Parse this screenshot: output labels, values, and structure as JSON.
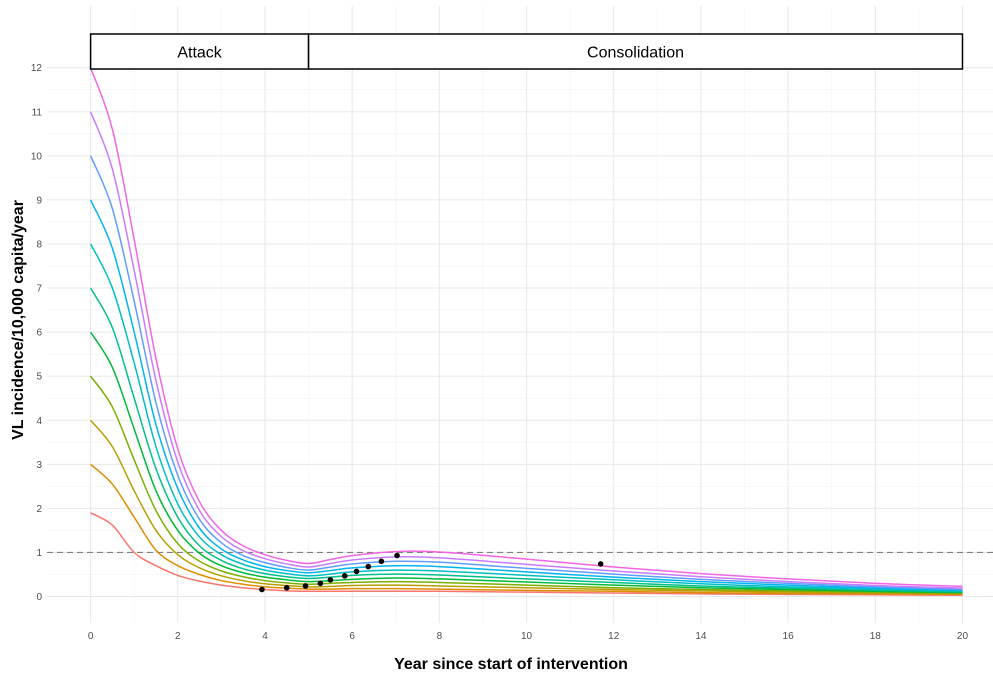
{
  "chart_data": {
    "type": "line",
    "xlabel": "Year since start of intervention",
    "ylabel": "VL incidence/10,000 capita/year",
    "xlim": [
      -1,
      20.7
    ],
    "ylim": [
      -0.6,
      13.4
    ],
    "x_ticks": [
      0,
      2,
      4,
      6,
      8,
      10,
      12,
      14,
      16,
      18,
      20
    ],
    "y_ticks": [
      0,
      1,
      2,
      3,
      4,
      5,
      6,
      7,
      8,
      9,
      10,
      11,
      12
    ],
    "x_tick_labels": [
      "0",
      "2",
      "4",
      "6",
      "8",
      "10",
      "12",
      "14",
      "16",
      "18",
      "20"
    ],
    "y_tick_labels": [
      "0",
      "1",
      "2",
      "3",
      "4",
      "5",
      "6",
      "7",
      "8",
      "9",
      "10",
      "11",
      "12"
    ],
    "grid": true,
    "phases": [
      {
        "label": "Attack",
        "x_start": 0,
        "x_end": 5
      },
      {
        "label": "Consolidation",
        "x_start": 5,
        "x_end": 20
      }
    ],
    "reference_line": {
      "y": 1,
      "style": "dashed"
    },
    "colors": [
      "#F8766D",
      "#DE8C00",
      "#B79F00",
      "#7CAE00",
      "#00BA38",
      "#00C08B",
      "#00BFC4",
      "#00B4F0",
      "#619CFF",
      "#C77CFF",
      "#F564E3"
    ],
    "series": [
      {
        "initial": 1.9,
        "x": [
          0,
          0.5,
          1,
          1.5,
          2,
          2.5,
          3,
          3.5,
          4,
          4.5,
          5,
          5.5,
          6,
          7,
          8,
          10,
          12,
          14,
          16,
          18,
          20
        ],
        "values": [
          1.9,
          1.62,
          1.0,
          0.7,
          0.48,
          0.35,
          0.26,
          0.2,
          0.16,
          0.13,
          0.12,
          0.12,
          0.12,
          0.12,
          0.12,
          0.1,
          0.08,
          0.06,
          0.05,
          0.04,
          0.03
        ]
      },
      {
        "initial": 3.0,
        "x": [
          0,
          0.5,
          1,
          1.5,
          2,
          2.5,
          3,
          3.5,
          4,
          4.5,
          5,
          5.5,
          6,
          7,
          8,
          10,
          12,
          14,
          16,
          18,
          20
        ],
        "values": [
          3.0,
          2.55,
          1.8,
          1.05,
          0.7,
          0.5,
          0.36,
          0.28,
          0.22,
          0.19,
          0.17,
          0.17,
          0.18,
          0.18,
          0.17,
          0.14,
          0.12,
          0.09,
          0.07,
          0.06,
          0.05
        ]
      },
      {
        "initial": 4.0,
        "x": [
          0,
          0.5,
          1,
          1.5,
          2,
          2.5,
          3,
          3.5,
          4,
          4.5,
          5,
          5.5,
          6,
          7,
          8,
          10,
          12,
          14,
          16,
          18,
          20
        ],
        "values": [
          4.0,
          3.4,
          2.4,
          1.5,
          0.95,
          0.65,
          0.47,
          0.36,
          0.29,
          0.25,
          0.22,
          0.23,
          0.25,
          0.26,
          0.24,
          0.2,
          0.16,
          0.13,
          0.1,
          0.08,
          0.06
        ]
      },
      {
        "initial": 5.0,
        "x": [
          0,
          0.5,
          1,
          1.5,
          2,
          2.5,
          3,
          3.5,
          4,
          4.5,
          5,
          5.5,
          6,
          7,
          8,
          10,
          12,
          14,
          16,
          18,
          20
        ],
        "values": [
          5.0,
          4.3,
          3.1,
          1.95,
          1.2,
          0.8,
          0.58,
          0.45,
          0.36,
          0.31,
          0.28,
          0.3,
          0.32,
          0.34,
          0.32,
          0.26,
          0.2,
          0.16,
          0.13,
          0.1,
          0.08
        ]
      },
      {
        "initial": 6.0,
        "x": [
          0,
          0.5,
          1,
          1.5,
          2,
          2.5,
          3,
          3.5,
          4,
          4.5,
          5,
          5.5,
          6,
          7,
          8,
          10,
          12,
          14,
          16,
          18,
          20
        ],
        "values": [
          6.0,
          5.2,
          3.8,
          2.4,
          1.5,
          0.98,
          0.7,
          0.54,
          0.44,
          0.38,
          0.34,
          0.36,
          0.39,
          0.42,
          0.4,
          0.33,
          0.26,
          0.2,
          0.16,
          0.12,
          0.09
        ]
      },
      {
        "initial": 7.0,
        "x": [
          0,
          0.5,
          1,
          1.5,
          2,
          2.5,
          3,
          3.5,
          4,
          4.5,
          5,
          5.5,
          6,
          7,
          8,
          10,
          12,
          14,
          16,
          18,
          20
        ],
        "values": [
          7.0,
          6.1,
          4.5,
          2.9,
          1.8,
          1.15,
          0.82,
          0.63,
          0.52,
          0.45,
          0.41,
          0.44,
          0.48,
          0.51,
          0.49,
          0.4,
          0.32,
          0.24,
          0.19,
          0.14,
          0.11
        ]
      },
      {
        "initial": 8.0,
        "x": [
          0,
          0.5,
          1,
          1.5,
          2,
          2.5,
          3,
          3.5,
          4,
          4.5,
          5,
          5.5,
          6,
          7,
          8,
          10,
          12,
          14,
          16,
          18,
          20
        ],
        "values": [
          8.0,
          7.0,
          5.3,
          3.4,
          2.1,
          1.35,
          0.95,
          0.73,
          0.6,
          0.52,
          0.47,
          0.51,
          0.56,
          0.6,
          0.58,
          0.48,
          0.38,
          0.29,
          0.22,
          0.17,
          0.13
        ]
      },
      {
        "initial": 9.0,
        "x": [
          0,
          0.5,
          1,
          1.5,
          2,
          2.5,
          3,
          3.5,
          4,
          4.5,
          5,
          5.5,
          6,
          7,
          8,
          10,
          12,
          14,
          16,
          18,
          20
        ],
        "values": [
          9.0,
          7.9,
          6.0,
          3.9,
          2.45,
          1.55,
          1.08,
          0.83,
          0.68,
          0.59,
          0.54,
          0.59,
          0.65,
          0.7,
          0.68,
          0.56,
          0.44,
          0.34,
          0.26,
          0.19,
          0.14
        ]
      },
      {
        "initial": 10.0,
        "x": [
          0,
          0.5,
          1,
          1.5,
          2,
          2.5,
          3,
          3.5,
          4,
          4.5,
          5,
          5.5,
          6,
          7,
          8,
          10,
          12,
          14,
          16,
          18,
          20
        ],
        "values": [
          10.0,
          8.8,
          6.7,
          4.4,
          2.75,
          1.75,
          1.22,
          0.93,
          0.77,
          0.66,
          0.6,
          0.67,
          0.74,
          0.8,
          0.78,
          0.64,
          0.51,
          0.39,
          0.3,
          0.22,
          0.16
        ]
      },
      {
        "initial": 11.0,
        "x": [
          0,
          0.5,
          1,
          1.5,
          2,
          2.5,
          3,
          3.5,
          4,
          4.5,
          5,
          5.5,
          6,
          7,
          8,
          10,
          12,
          14,
          16,
          18,
          20
        ],
        "values": [
          11.0,
          9.7,
          7.4,
          4.9,
          3.05,
          1.95,
          1.36,
          1.04,
          0.86,
          0.74,
          0.67,
          0.75,
          0.83,
          0.9,
          0.88,
          0.73,
          0.58,
          0.45,
          0.34,
          0.25,
          0.19
        ]
      },
      {
        "initial": 12.0,
        "x": [
          0,
          0.5,
          1,
          1.5,
          2,
          2.5,
          3,
          3.5,
          4,
          4.5,
          5,
          5.5,
          6,
          7,
          8,
          10,
          12,
          14,
          16,
          18,
          20
        ],
        "values": [
          12.0,
          10.6,
          8.1,
          5.4,
          3.35,
          2.15,
          1.5,
          1.15,
          0.95,
          0.82,
          0.75,
          0.84,
          0.93,
          1.02,
          1.01,
          0.85,
          0.67,
          0.52,
          0.4,
          0.3,
          0.23
        ]
      }
    ],
    "points": [
      {
        "x": 3.93,
        "y": 0.16
      },
      {
        "x": 4.5,
        "y": 0.2
      },
      {
        "x": 4.93,
        "y": 0.24
      },
      {
        "x": 5.27,
        "y": 0.3
      },
      {
        "x": 5.5,
        "y": 0.38
      },
      {
        "x": 5.83,
        "y": 0.47
      },
      {
        "x": 6.1,
        "y": 0.57
      },
      {
        "x": 6.37,
        "y": 0.68
      },
      {
        "x": 6.67,
        "y": 0.8
      },
      {
        "x": 7.03,
        "y": 0.93
      },
      {
        "x": 11.7,
        "y": 0.74
      }
    ]
  }
}
